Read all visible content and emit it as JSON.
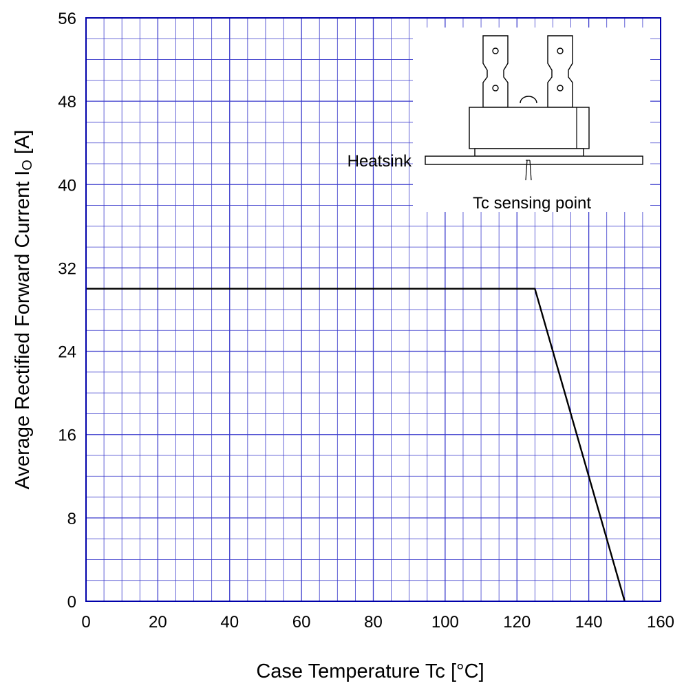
{
  "chart_data": {
    "type": "line",
    "title": "",
    "xlabel": "Case Temperature  Tc  [°C]",
    "ylabel_main": "Average Rectified Forward Current  I",
    "ylabel_sub": "O",
    "ylabel_unit": " [A]",
    "xlim": [
      0,
      160
    ],
    "ylim": [
      0,
      56
    ],
    "x_ticks": [
      0,
      20,
      40,
      60,
      80,
      100,
      120,
      140,
      160
    ],
    "y_ticks": [
      0,
      8,
      16,
      24,
      32,
      40,
      48,
      56
    ],
    "x_minor_step": 5,
    "y_minor_step": 2,
    "grid": true,
    "series": [
      {
        "x": [
          0,
          125,
          150
        ],
        "y": [
          30,
          30,
          0
        ]
      }
    ],
    "colors": {
      "grid": "#3a3acc",
      "frame": "#0000aa",
      "line": "#000000"
    },
    "inset": {
      "labels": {
        "heatsink": "Heatsink",
        "sensing_point": "Tc sensing point"
      }
    }
  }
}
